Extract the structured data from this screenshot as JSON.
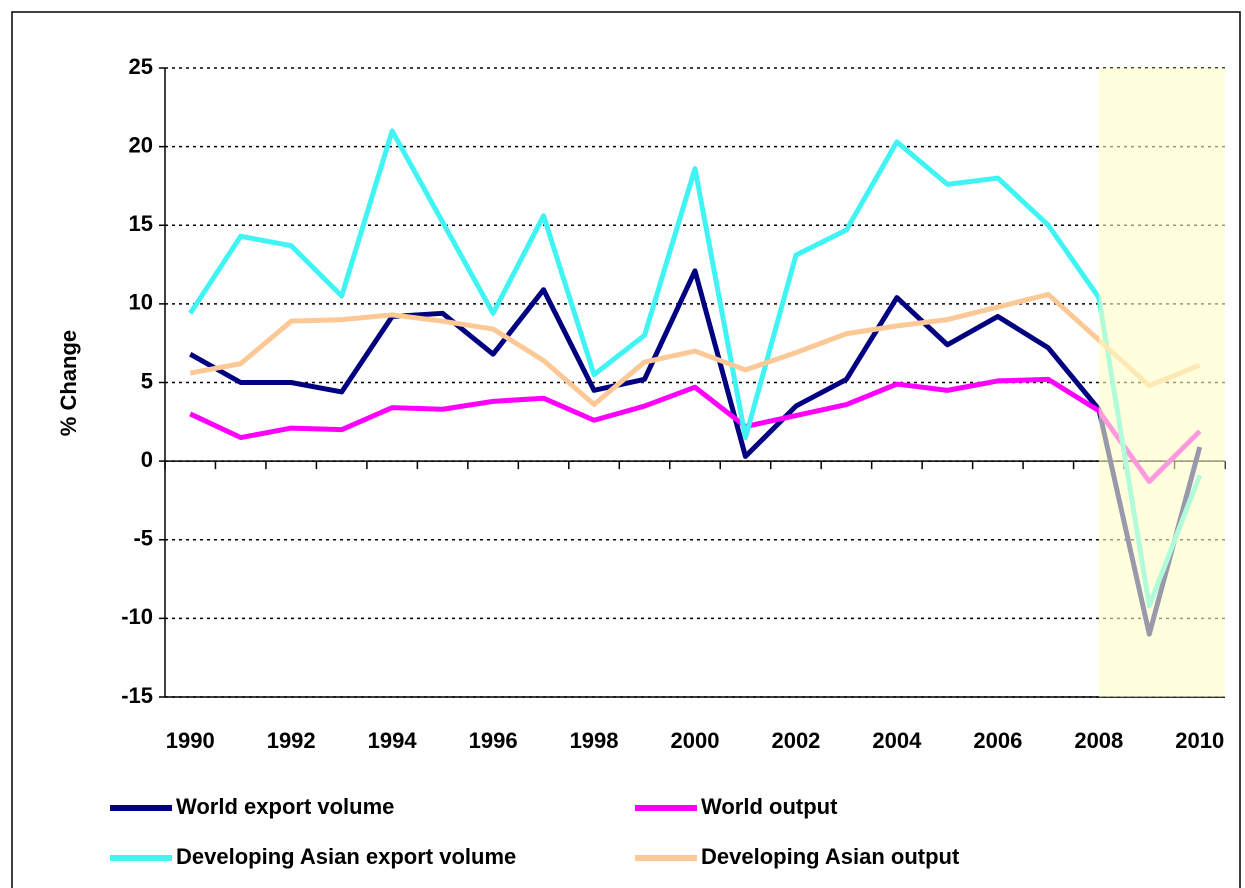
{
  "chart_data": {
    "type": "line",
    "y_label": "% Change",
    "categories": [
      "1990",
      null,
      "1992",
      null,
      "1994",
      null,
      "1996",
      null,
      "1998",
      null,
      "2000",
      null,
      "2002",
      null,
      "2004",
      null,
      "2006",
      null,
      "2008",
      null,
      "2010"
    ],
    "series": [
      {
        "name": "World export volume",
        "color": "#000080",
        "values": [
          6.8,
          5.0,
          5.0,
          4.4,
          9.2,
          9.4,
          6.8,
          10.9,
          4.5,
          5.2,
          12.1,
          0.3,
          3.5,
          5.2,
          10.4,
          7.4,
          9.2,
          7.2,
          3.3,
          -11.0,
          0.9
        ]
      },
      {
        "name": "World output",
        "color": "#ff00ff",
        "values": [
          3.0,
          1.5,
          2.1,
          2.0,
          3.4,
          3.3,
          3.8,
          4.0,
          2.6,
          3.5,
          4.7,
          2.2,
          2.9,
          3.6,
          4.9,
          4.5,
          5.1,
          5.2,
          3.2,
          -1.3,
          1.9
        ]
      },
      {
        "name": "Developing Asian export volume",
        "color": "#40f4f4",
        "values": [
          9.4,
          14.3,
          13.7,
          10.5,
          21.0,
          15.2,
          9.4,
          15.6,
          5.5,
          8.0,
          18.6,
          1.5,
          13.1,
          14.7,
          20.3,
          17.6,
          18.0,
          15.0,
          10.4,
          -9.2,
          -0.9
        ]
      },
      {
        "name": "Developing Asian output",
        "color": "#fcc896",
        "values": [
          5.6,
          6.2,
          8.9,
          9.0,
          9.3,
          8.9,
          8.4,
          6.4,
          3.6,
          6.3,
          7.0,
          5.8,
          6.9,
          8.1,
          8.6,
          9.0,
          9.8,
          10.6,
          7.7,
          4.8,
          6.1
        ]
      }
    ],
    "ylim": [
      -15,
      25
    ],
    "yticks": [
      -15,
      -10,
      -5,
      0,
      5,
      10,
      15,
      20,
      25
    ],
    "grid": true,
    "shade_from_index": 18,
    "shade_color": "#ffffc8",
    "legend": "bottom"
  }
}
